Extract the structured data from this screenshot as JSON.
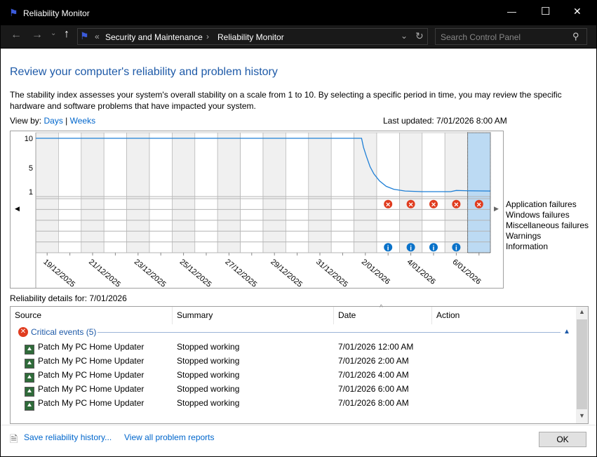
{
  "window": {
    "title": "Reliability Monitor",
    "minimize": "—",
    "maximize": "☐",
    "close": "✕"
  },
  "nav": {
    "back": "←",
    "forward": "→",
    "recent": "⌄",
    "up": "↑",
    "overflow": "«",
    "breadcrumb": [
      "Security and Maintenance",
      "Reliability Monitor"
    ],
    "separator": "›",
    "dropdown": "⌄",
    "refresh": "↻",
    "search_placeholder": "Search Control Panel"
  },
  "main": {
    "heading": "Review your computer's reliability and problem history",
    "description": "The stability index assesses your system's overall stability on a scale from 1 to 10. By selecting a specific period in time, you may review the specific hardware and software problems that have impacted your system.",
    "view_by_label": "View by:",
    "view_days": "Days",
    "view_sep": "|",
    "view_weeks": "Weeks",
    "last_updated": "Last updated: 7/01/2026 8:00 AM"
  },
  "chart_data": {
    "type": "line",
    "yticks": [
      "10",
      "5",
      "1"
    ],
    "ylim": [
      1,
      10
    ],
    "days": [
      "19/12/2025",
      "20/12/2025",
      "21/12/2025",
      "22/12/2025",
      "23/12/2025",
      "24/12/2025",
      "25/12/2025",
      "26/12/2025",
      "27/12/2025",
      "28/12/2025",
      "29/12/2025",
      "30/12/2025",
      "31/12/2025",
      "1/01/2026",
      "2/01/2026",
      "3/01/2026",
      "4/01/2026",
      "5/01/2026",
      "6/01/2026",
      "7/01/2026"
    ],
    "xtick_labels": [
      "19/12/2025",
      "21/12/2025",
      "23/12/2025",
      "25/12/2025",
      "27/12/2025",
      "29/12/2025",
      "31/12/2025",
      "2/01/2026",
      "4/01/2026",
      "6/01/2026"
    ],
    "stability_index": [
      [
        "2025-12-19T00:00",
        10
      ],
      [
        "2026-01-02T08:00",
        10
      ],
      [
        "2026-01-02T10:00",
        8.5
      ],
      [
        "2026-01-02T13:00",
        7
      ],
      [
        "2026-01-02T17:00",
        5.2
      ],
      [
        "2026-01-02T21:00",
        4
      ],
      [
        "2026-01-03T03:00",
        2.8
      ],
      [
        "2026-01-03T10:00",
        1.9
      ],
      [
        "2026-01-03T18:00",
        1.4
      ],
      [
        "2026-01-04T06:00",
        1.1
      ],
      [
        "2026-01-05T00:00",
        1.0
      ],
      [
        "2026-01-06T06:00",
        1.0
      ],
      [
        "2026-01-06T12:00",
        1.2
      ],
      [
        "2026-01-07T00:00",
        1.15
      ],
      [
        "2026-01-08T00:00",
        1.1
      ]
    ],
    "categories": [
      "Application failures",
      "Windows failures",
      "Miscellaneous failures",
      "Warnings",
      "Information"
    ],
    "events": [
      {
        "category": "Application failures",
        "days": [
          "3/01/2026",
          "4/01/2026",
          "5/01/2026",
          "6/01/2026",
          "7/01/2026"
        ],
        "icon": "error-icon"
      },
      {
        "category": "Information",
        "days": [
          "3/01/2026",
          "4/01/2026",
          "5/01/2026",
          "6/01/2026"
        ],
        "icon": "info-icon"
      }
    ],
    "selected_day": "7/01/2026",
    "grid": true,
    "colors": {
      "line": "#1e7fd6",
      "error": "#e03c1f",
      "info": "#0a72c9",
      "selected": "#bcdaf3",
      "alt_column": "#f0f0f0"
    }
  },
  "details": {
    "title": "Reliability details for: 7/01/2026",
    "columns": [
      "Source",
      "Summary",
      "Date",
      "Action"
    ],
    "group": "Critical events (5)",
    "rows": [
      {
        "source": "Patch My PC Home Updater",
        "summary": "Stopped working",
        "date": "7/01/2026 12:00 AM",
        "action": ""
      },
      {
        "source": "Patch My PC Home Updater",
        "summary": "Stopped working",
        "date": "7/01/2026 2:00 AM",
        "action": ""
      },
      {
        "source": "Patch My PC Home Updater",
        "summary": "Stopped working",
        "date": "7/01/2026 4:00 AM",
        "action": ""
      },
      {
        "source": "Patch My PC Home Updater",
        "summary": "Stopped working",
        "date": "7/01/2026 6:00 AM",
        "action": ""
      },
      {
        "source": "Patch My PC Home Updater",
        "summary": "Stopped working",
        "date": "7/01/2026 8:00 AM",
        "action": ""
      }
    ]
  },
  "footer": {
    "save": "Save reliability history...",
    "view_all": "View all problem reports",
    "ok": "OK"
  }
}
